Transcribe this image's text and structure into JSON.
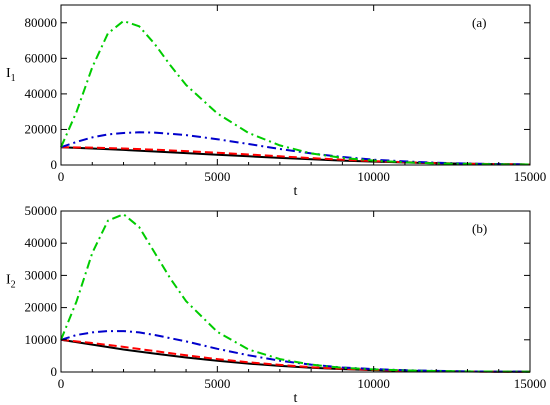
{
  "chart_data": [
    {
      "type": "line",
      "panel_label": "(a)",
      "xlabel": "t",
      "ylabel": "I",
      "ylabel_sub": "1",
      "xlim": [
        0,
        15000
      ],
      "ylim": [
        0,
        90000
      ],
      "x_ticks": [
        0,
        5000,
        10000,
        15000
      ],
      "y_ticks": [
        0,
        20000,
        40000,
        60000,
        80000
      ],
      "grid": false,
      "series": [
        {
          "color": "#000000",
          "dash": "solid",
          "x": [
            0,
            1000,
            2000,
            3000,
            4000,
            5000,
            6000,
            7000,
            8000,
            9000,
            10000,
            11000,
            12000,
            13000,
            14000,
            15000
          ],
          "y": [
            10000,
            9300,
            8500,
            7600,
            6700,
            5800,
            4900,
            4000,
            3200,
            2500,
            1900,
            1400,
            1000,
            700,
            450,
            300
          ]
        },
        {
          "color": "#ff0000",
          "dash": "dashed",
          "x": [
            0,
            1000,
            2000,
            3000,
            4000,
            5000,
            6000,
            7000,
            8000,
            9000,
            10000,
            11000,
            12000,
            13000,
            14000,
            15000
          ],
          "y": [
            10000,
            9800,
            9300,
            8600,
            7800,
            6900,
            5900,
            4900,
            3900,
            3000,
            2200,
            1600,
            1100,
            750,
            500,
            300
          ]
        },
        {
          "color": "#0000cc",
          "dash": "dashdot",
          "x": [
            0,
            500,
            1000,
            1500,
            2000,
            2500,
            3000,
            4000,
            5000,
            6000,
            7000,
            8000,
            9000,
            10000,
            11000,
            12000,
            13000,
            14000,
            15000
          ],
          "y": [
            10000,
            13000,
            15500,
            17200,
            18000,
            18400,
            18200,
            16800,
            14500,
            11800,
            9000,
            6500,
            4500,
            3000,
            2000,
            1300,
            800,
            500,
            300
          ]
        },
        {
          "color": "#00cc00",
          "dash": "dashdot",
          "x": [
            0,
            500,
            1000,
            1500,
            2000,
            2500,
            3000,
            3500,
            4000,
            5000,
            6000,
            7000,
            8000,
            9000,
            10000,
            11000,
            12000,
            13000,
            14000,
            15000
          ],
          "y": [
            10000,
            30000,
            55000,
            74000,
            81000,
            78000,
            68000,
            56000,
            45000,
            29000,
            18000,
            11000,
            6500,
            4000,
            2500,
            1500,
            900,
            600,
            400,
            300
          ]
        }
      ]
    },
    {
      "type": "line",
      "panel_label": "(b)",
      "xlabel": "t",
      "ylabel": "I",
      "ylabel_sub": "2",
      "xlim": [
        0,
        15000
      ],
      "ylim": [
        0,
        50000
      ],
      "x_ticks": [
        0,
        5000,
        10000,
        15000
      ],
      "y_ticks": [
        0,
        10000,
        20000,
        30000,
        40000,
        50000
      ],
      "grid": false,
      "series": [
        {
          "color": "#000000",
          "dash": "solid",
          "x": [
            0,
            1000,
            2000,
            3000,
            4000,
            5000,
            6000,
            7000,
            8000,
            9000,
            10000,
            11000,
            12000,
            13000,
            14000,
            15000
          ],
          "y": [
            10000,
            8500,
            7000,
            5700,
            4500,
            3500,
            2600,
            1900,
            1300,
            900,
            600,
            400,
            250,
            150,
            100,
            50
          ]
        },
        {
          "color": "#ff0000",
          "dash": "dashed",
          "x": [
            0,
            1000,
            2000,
            3000,
            4000,
            5000,
            6000,
            7000,
            8000,
            9000,
            10000,
            11000,
            12000,
            13000,
            14000,
            15000
          ],
          "y": [
            10000,
            9000,
            7800,
            6500,
            5200,
            4000,
            3000,
            2200,
            1500,
            1000,
            650,
            400,
            250,
            150,
            100,
            50
          ]
        },
        {
          "color": "#0000cc",
          "dash": "dashdot",
          "x": [
            0,
            500,
            1000,
            1500,
            2000,
            2500,
            3000,
            4000,
            5000,
            6000,
            7000,
            8000,
            9000,
            10000,
            11000,
            12000,
            13000,
            14000,
            15000
          ],
          "y": [
            10000,
            11500,
            12300,
            12700,
            12700,
            12300,
            11500,
            9500,
            7200,
            5200,
            3500,
            2300,
            1400,
            900,
            550,
            350,
            200,
            120,
            80
          ]
        },
        {
          "color": "#00cc00",
          "dash": "dashdot",
          "x": [
            0,
            500,
            1000,
            1500,
            2000,
            2500,
            3000,
            3500,
            4000,
            5000,
            6000,
            7000,
            8000,
            9000,
            10000,
            11000,
            12000,
            13000,
            14000,
            15000
          ],
          "y": [
            10000,
            22000,
            37000,
            47000,
            49000,
            45000,
            37000,
            29000,
            22000,
            12500,
            7000,
            4000,
            2300,
            1300,
            800,
            500,
            300,
            200,
            120,
            80
          ]
        }
      ]
    }
  ]
}
